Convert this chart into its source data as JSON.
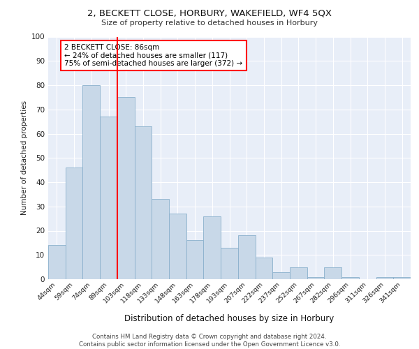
{
  "title1": "2, BECKETT CLOSE, HORBURY, WAKEFIELD, WF4 5QX",
  "title2": "Size of property relative to detached houses in Horbury",
  "xlabel": "Distribution of detached houses by size in Horbury",
  "ylabel": "Number of detached properties",
  "categories": [
    "44sqm",
    "59sqm",
    "74sqm",
    "89sqm",
    "103sqm",
    "118sqm",
    "133sqm",
    "148sqm",
    "163sqm",
    "178sqm",
    "193sqm",
    "207sqm",
    "222sqm",
    "237sqm",
    "252sqm",
    "267sqm",
    "282sqm",
    "296sqm",
    "311sqm",
    "326sqm",
    "341sqm"
  ],
  "values": [
    14,
    46,
    80,
    67,
    75,
    63,
    33,
    27,
    16,
    26,
    13,
    18,
    9,
    3,
    5,
    1,
    5,
    1,
    0,
    1,
    1
  ],
  "bar_color": "#c8d8e8",
  "bar_edge_color": "#8ab0cc",
  "property_line_index": 3,
  "property_line_color": "red",
  "annotation_box_text": "2 BECKETT CLOSE: 86sqm\n← 24% of detached houses are smaller (117)\n75% of semi-detached houses are larger (372) →",
  "background_color": "#e8eef8",
  "grid_color": "#ffffff",
  "footer_text": "Contains HM Land Registry data © Crown copyright and database right 2024.\nContains public sector information licensed under the Open Government Licence v3.0.",
  "ylim": [
    0,
    100
  ],
  "yticks": [
    0,
    10,
    20,
    30,
    40,
    50,
    60,
    70,
    80,
    90,
    100
  ]
}
